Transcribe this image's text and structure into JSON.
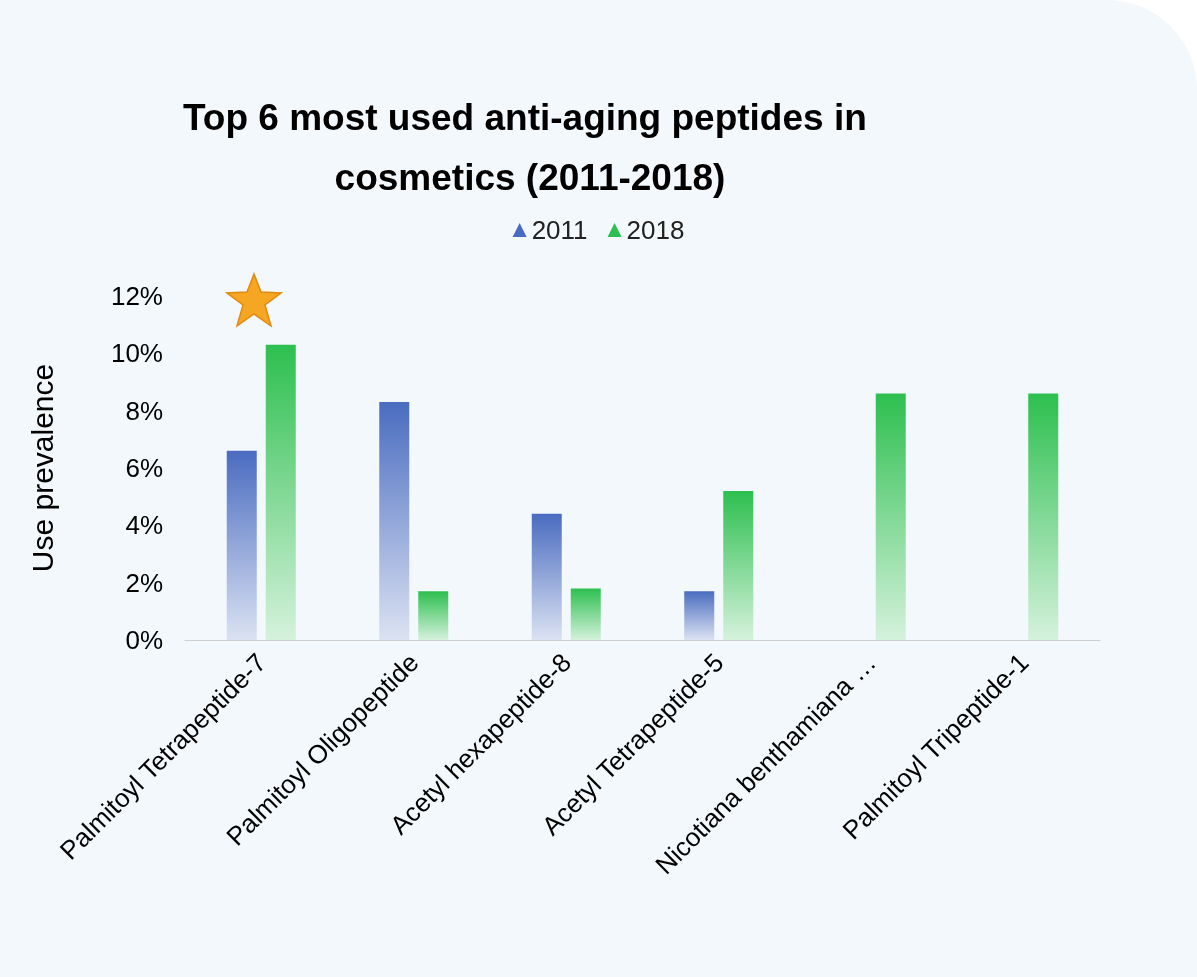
{
  "chart_data": {
    "type": "bar",
    "title": "Top 6 most used anti-aging peptides in cosmetics (2011-2018)",
    "ylabel": "Use prevalence",
    "categories": [
      "Palmitoyl Tetrapeptide-7",
      "Palmitoyl Oligopeptide",
      "Acetyl hexapeptide-8",
      "Acetyl Tetrapeptide-5",
      "Nicotiana benthamiana …",
      "Palmitoyl Tripeptide-1"
    ],
    "series": [
      {
        "name": "2011",
        "color": "#4a6cc0",
        "values": [
          6.6,
          8.3,
          4.4,
          1.7,
          0,
          0
        ]
      },
      {
        "name": "2018",
        "color": "#2dbf4f",
        "values": [
          10.3,
          1.7,
          1.8,
          5.2,
          8.6,
          8.6
        ]
      }
    ],
    "ylim": [
      0,
      12
    ],
    "yticks": [
      {
        "value": 0,
        "label": "0%"
      },
      {
        "value": 2,
        "label": "2%"
      },
      {
        "value": 4,
        "label": "4%"
      },
      {
        "value": 6,
        "label": "6%"
      },
      {
        "value": 8,
        "label": "8%"
      },
      {
        "value": 10,
        "label": "10%"
      },
      {
        "value": 12,
        "label": "12%"
      }
    ],
    "grid": false,
    "legend": "top"
  }
}
